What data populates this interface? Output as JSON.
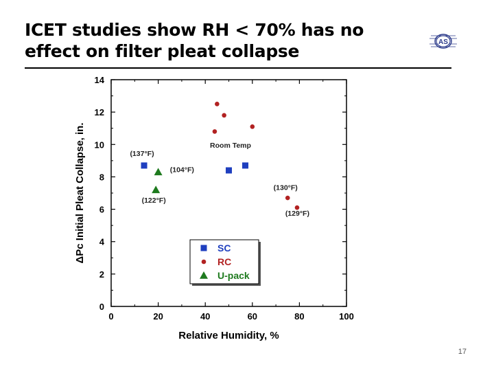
{
  "slide": {
    "title": "ICET studies show RH < 70% has no effect on filter pleat collapse",
    "page_number": "17",
    "logo_text": "AS"
  },
  "chart_data": {
    "type": "scatter",
    "title": "",
    "xlabel": "Relative Humidity, %",
    "ylabel": "ΔPc Initial Pleat Collapse, in.",
    "xlim": [
      0,
      100
    ],
    "ylim": [
      0,
      14
    ],
    "x_ticks": [
      0,
      20,
      40,
      60,
      80,
      100
    ],
    "y_ticks": [
      0,
      2,
      4,
      6,
      8,
      10,
      12,
      14
    ],
    "grid": false,
    "legend_position": "bottom-center",
    "series": [
      {
        "name": "SC",
        "marker": "square",
        "color": "#1f3fbf",
        "points": [
          {
            "x": 14,
            "y": 8.7
          },
          {
            "x": 50,
            "y": 8.4
          },
          {
            "x": 57,
            "y": 8.7
          }
        ]
      },
      {
        "name": "RC",
        "marker": "circle",
        "color": "#b22222",
        "points": [
          {
            "x": 44,
            "y": 10.8
          },
          {
            "x": 45,
            "y": 12.5
          },
          {
            "x": 48,
            "y": 11.8
          },
          {
            "x": 60,
            "y": 11.1
          },
          {
            "x": 75,
            "y": 6.7
          },
          {
            "x": 79,
            "y": 6.1
          }
        ]
      },
      {
        "name": "U-pack",
        "marker": "triangle",
        "color": "#1e7a1e",
        "points": [
          {
            "x": 20,
            "y": 8.3
          },
          {
            "x": 19,
            "y": 7.2
          }
        ]
      }
    ],
    "annotations": [
      {
        "text": "(137°F)",
        "x": 8,
        "y": 9.3
      },
      {
        "text": "(104°F)",
        "x": 25,
        "y": 8.3
      },
      {
        "text": "(122°F)",
        "x": 13,
        "y": 6.4
      },
      {
        "text": "Room Temp",
        "x": 42,
        "y": 9.8
      },
      {
        "text": "(130°F)",
        "x": 69,
        "y": 7.2
      },
      {
        "text": "(129°F)",
        "x": 74,
        "y": 5.6
      }
    ]
  }
}
